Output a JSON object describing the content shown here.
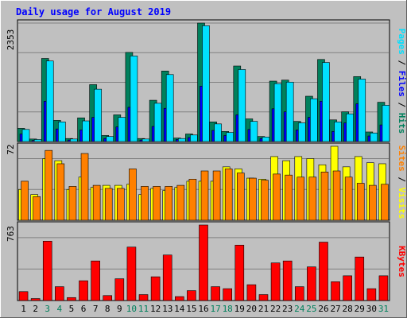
{
  "colors": {
    "background": "#c0c0c0",
    "title": "#0000ff",
    "hits": "#00805c",
    "files": "#0000ff",
    "pages": "#00e0ff",
    "visits": "#ffff00",
    "sites": "#ff8000",
    "kbytes": "#ff0000",
    "weekend": "#00805c"
  },
  "chart_data": {
    "title": "Daily usage for August 2019",
    "categories": [
      "1",
      "2",
      "3",
      "4",
      "5",
      "6",
      "7",
      "8",
      "9",
      "10",
      "11",
      "12",
      "13",
      "14",
      "15",
      "16",
      "17",
      "18",
      "19",
      "20",
      "21",
      "22",
      "23",
      "24",
      "25",
      "26",
      "27",
      "28",
      "29",
      "30",
      "31"
    ],
    "weekend_days": [
      "3",
      "4",
      "10",
      "11",
      "17",
      "18",
      "24",
      "25",
      "31"
    ],
    "panels": [
      {
        "type": "bar",
        "ymax_label": "2353",
        "ylim": [
          0,
          2353
        ],
        "legend": [
          "Hits",
          "Files",
          "Pages"
        ],
        "series": [
          {
            "name": "Hits",
            "values": [
              262,
              50,
              1650,
              420,
              60,
              470,
              1130,
              120,
              530,
              1770,
              60,
              820,
              1400,
              70,
              150,
              2353,
              390,
              200,
              1500,
              450,
              100,
              1200,
              1220,
              400,
              900,
              1630,
              430,
              590,
              1290,
              190,
              780
            ]
          },
          {
            "name": "Files",
            "values": [
              150,
              20,
              800,
              250,
              30,
              230,
              480,
              60,
              290,
              680,
              30,
              300,
              660,
              40,
              80,
              1100,
              220,
              120,
              530,
              240,
              60,
              650,
              590,
              230,
              480,
              800,
              200,
              370,
              750,
              110,
              330
            ]
          },
          {
            "name": "Pages",
            "values": [
              240,
              40,
              1600,
              390,
              50,
              410,
              1040,
              100,
              480,
              1700,
              50,
              760,
              1330,
              60,
              130,
              2300,
              350,
              180,
              1430,
              400,
              90,
              1150,
              1180,
              370,
              850,
              1570,
              390,
              550,
              1240,
              170,
              720
            ]
          }
        ]
      },
      {
        "type": "bar",
        "ymax_label": "72",
        "ylim": [
          0,
          72
        ],
        "legend": [
          "Visits",
          "Sites"
        ],
        "series": [
          {
            "name": "Visits",
            "values": [
              30,
              25,
              60,
              58,
              30,
              42,
              32,
              34,
              34,
              35,
              25,
              31,
              29,
              32,
              38,
              38,
              38,
              52,
              50,
              41,
              40,
              62,
              58,
              62,
              60,
              54,
              72,
              52,
              62,
              56,
              55
            ]
          },
          {
            "name": "Sites",
            "values": [
              38,
              23,
              68,
              55,
              33,
              65,
              34,
              31,
              31,
              50,
              33,
              33,
              33,
              34,
              40,
              48,
              48,
              50,
              46,
              41,
              39,
              45,
              44,
              42,
              42,
              47,
              48,
              42,
              36,
              34,
              35
            ]
          }
        ]
      },
      {
        "type": "bar",
        "ymax_label": "763",
        "ylim": [
          0,
          763
        ],
        "legend": [
          "KBytes"
        ],
        "series": [
          {
            "name": "KBytes",
            "values": [
              90,
              20,
              600,
              140,
              30,
              200,
              400,
              50,
              220,
              540,
              60,
              240,
              460,
              40,
              100,
              763,
              140,
              120,
              560,
              160,
              60,
              380,
              400,
              140,
              340,
              590,
              190,
              250,
              440,
              120,
              250
            ]
          }
        ]
      }
    ]
  }
}
